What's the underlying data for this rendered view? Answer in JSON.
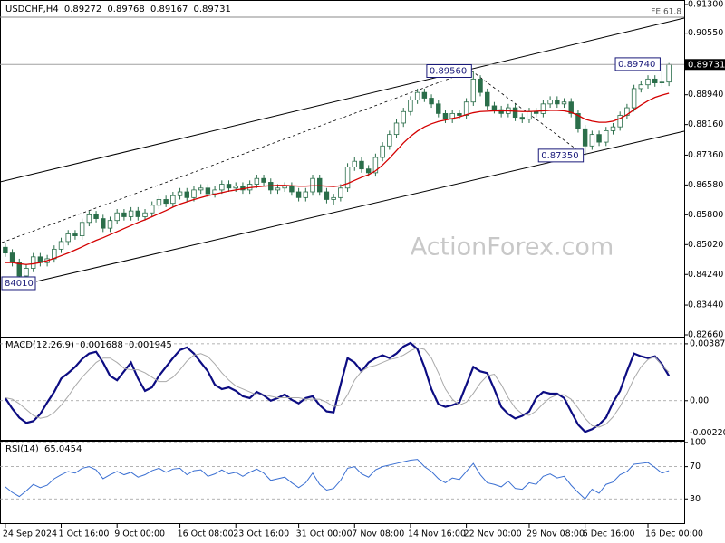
{
  "chart_data": [
    {
      "type": "candlestick",
      "title": "USDCHF,H4",
      "watermark": "ActionForex.com",
      "fe_label": "FE 61.8",
      "categories": [
        "24 Sep 2024",
        null,
        null,
        null,
        null,
        null,
        null,
        null,
        "1 Oct 16:00",
        null,
        null,
        null,
        null,
        null,
        null,
        null,
        "9 Oct 00:00",
        null,
        null,
        null,
        null,
        null,
        null,
        null,
        null,
        "16 Oct 08:00",
        null,
        null,
        null,
        null,
        null,
        null,
        null,
        "23 Oct 16:00",
        null,
        null,
        null,
        null,
        null,
        null,
        null,
        null,
        "31 Oct 00:00",
        null,
        null,
        null,
        null,
        null,
        null,
        null,
        "7 Nov 08:00",
        null,
        null,
        null,
        null,
        null,
        null,
        null,
        "14 Nov 16:00",
        null,
        null,
        null,
        null,
        null,
        null,
        null,
        "22 Nov 00:00",
        null,
        null,
        null,
        null,
        null,
        null,
        null,
        null,
        "29 Nov 08:00",
        null,
        null,
        null,
        null,
        null,
        null,
        null,
        "6 Dec 16:00",
        null,
        null,
        null,
        null,
        null,
        null,
        null,
        null,
        "16 Dec 00:00",
        null,
        null,
        null
      ],
      "open": [
        0.8495,
        0.848,
        0.8455,
        0.842,
        0.844,
        0.847,
        0.8455,
        0.8465,
        0.849,
        0.851,
        0.853,
        0.8525,
        0.856,
        0.858,
        0.857,
        0.8545,
        0.8565,
        0.8585,
        0.8575,
        0.859,
        0.8575,
        0.8585,
        0.8605,
        0.862,
        0.861,
        0.863,
        0.864,
        0.8625,
        0.8645,
        0.865,
        0.8635,
        0.8645,
        0.866,
        0.865,
        0.8655,
        0.8645,
        0.866,
        0.8675,
        0.8665,
        0.8645,
        0.865,
        0.8655,
        0.864,
        0.8625,
        0.864,
        0.8675,
        0.864,
        0.862,
        0.8625,
        0.865,
        0.8705,
        0.872,
        0.87,
        0.869,
        0.873,
        0.876,
        0.879,
        0.882,
        0.885,
        0.888,
        0.89,
        0.8885,
        0.887,
        0.8845,
        0.883,
        0.8845,
        0.884,
        0.8875,
        0.8935,
        0.89,
        0.8865,
        0.8855,
        0.8845,
        0.886,
        0.8835,
        0.883,
        0.885,
        0.8845,
        0.887,
        0.888,
        0.887,
        0.8875,
        0.8845,
        0.8805,
        0.876,
        0.879,
        0.877,
        0.88,
        0.881,
        0.884,
        0.886,
        0.891,
        0.892,
        0.8935,
        0.8925,
        0.89272
      ],
      "high": [
        0.8505,
        0.849,
        0.8465,
        0.845,
        0.848,
        0.848,
        0.8475,
        0.85,
        0.852,
        0.854,
        0.854,
        0.857,
        0.859,
        0.859,
        0.858,
        0.8575,
        0.8595,
        0.8595,
        0.86,
        0.86,
        0.8595,
        0.8615,
        0.863,
        0.863,
        0.864,
        0.865,
        0.865,
        0.8655,
        0.866,
        0.866,
        0.8655,
        0.867,
        0.867,
        0.8665,
        0.8665,
        0.867,
        0.8685,
        0.8685,
        0.8675,
        0.866,
        0.8665,
        0.8665,
        0.865,
        0.865,
        0.8685,
        0.8685,
        0.865,
        0.8635,
        0.866,
        0.8715,
        0.873,
        0.873,
        0.871,
        0.874,
        0.877,
        0.88,
        0.883,
        0.886,
        0.889,
        0.891,
        0.891,
        0.8895,
        0.888,
        0.8855,
        0.8855,
        0.8855,
        0.8885,
        0.8956,
        0.8945,
        0.891,
        0.8875,
        0.8865,
        0.887,
        0.887,
        0.8845,
        0.886,
        0.886,
        0.888,
        0.889,
        0.889,
        0.8885,
        0.8885,
        0.8855,
        0.8815,
        0.88,
        0.88,
        0.881,
        0.882,
        0.885,
        0.887,
        0.892,
        0.893,
        0.8945,
        0.8945,
        0.8974,
        0.89768
      ],
      "low": [
        0.847,
        0.8445,
        0.8401,
        0.841,
        0.843,
        0.8445,
        0.8445,
        0.8455,
        0.848,
        0.85,
        0.8515,
        0.8515,
        0.855,
        0.856,
        0.8535,
        0.8535,
        0.8555,
        0.8565,
        0.8565,
        0.8565,
        0.8565,
        0.8575,
        0.8595,
        0.86,
        0.86,
        0.862,
        0.8615,
        0.8615,
        0.8635,
        0.8625,
        0.8625,
        0.8635,
        0.864,
        0.864,
        0.8635,
        0.8635,
        0.865,
        0.8655,
        0.8635,
        0.8635,
        0.864,
        0.863,
        0.8615,
        0.8615,
        0.863,
        0.863,
        0.861,
        0.8607,
        0.8615,
        0.864,
        0.8695,
        0.869,
        0.868,
        0.868,
        0.872,
        0.875,
        0.878,
        0.881,
        0.884,
        0.887,
        0.8875,
        0.886,
        0.8835,
        0.882,
        0.882,
        0.883,
        0.883,
        0.8865,
        0.889,
        0.8855,
        0.8845,
        0.8835,
        0.8835,
        0.8825,
        0.882,
        0.882,
        0.8835,
        0.8835,
        0.886,
        0.886,
        0.886,
        0.8835,
        0.8795,
        0.8735,
        0.875,
        0.876,
        0.876,
        0.879,
        0.88,
        0.883,
        0.885,
        0.89,
        0.891,
        0.8915,
        0.8915,
        0.89167
      ],
      "close": [
        0.848,
        0.8455,
        0.842,
        0.844,
        0.847,
        0.8455,
        0.8465,
        0.849,
        0.851,
        0.853,
        0.8525,
        0.856,
        0.858,
        0.857,
        0.8545,
        0.8565,
        0.8585,
        0.8575,
        0.859,
        0.8575,
        0.8585,
        0.8605,
        0.862,
        0.861,
        0.863,
        0.864,
        0.8625,
        0.8645,
        0.865,
        0.8635,
        0.8645,
        0.866,
        0.865,
        0.8655,
        0.8645,
        0.866,
        0.8675,
        0.8665,
        0.8645,
        0.865,
        0.8655,
        0.864,
        0.8625,
        0.864,
        0.8675,
        0.864,
        0.862,
        0.8625,
        0.865,
        0.8705,
        0.872,
        0.87,
        0.869,
        0.873,
        0.876,
        0.879,
        0.882,
        0.885,
        0.888,
        0.89,
        0.8885,
        0.887,
        0.8845,
        0.883,
        0.8845,
        0.884,
        0.8875,
        0.8935,
        0.89,
        0.8865,
        0.8855,
        0.8845,
        0.886,
        0.8835,
        0.883,
        0.885,
        0.8845,
        0.887,
        0.888,
        0.887,
        0.8875,
        0.8845,
        0.8805,
        0.876,
        0.879,
        0.877,
        0.88,
        0.881,
        0.884,
        0.886,
        0.891,
        0.892,
        0.8935,
        0.8925,
        0.8927,
        0.89731
      ],
      "color": "#2b6e4a",
      "ma_color": "#d40000",
      "ma_values": [
        0.8455,
        0.8455,
        0.8452,
        0.845,
        0.8452,
        0.8455,
        0.846,
        0.8466,
        0.8473,
        0.848,
        0.8488,
        0.8496,
        0.8505,
        0.8513,
        0.852,
        0.8528,
        0.8536,
        0.8544,
        0.8552,
        0.856,
        0.8567,
        0.8575,
        0.8583,
        0.8591,
        0.86,
        0.8608,
        0.8614,
        0.862,
        0.8625,
        0.863,
        0.8634,
        0.8638,
        0.8642,
        0.8645,
        0.8648,
        0.8651,
        0.8653,
        0.8655,
        0.8656,
        0.8657,
        0.8657,
        0.8656,
        0.8655,
        0.8655,
        0.8656,
        0.8656,
        0.8655,
        0.8654,
        0.8656,
        0.8662,
        0.867,
        0.8678,
        0.8685,
        0.8695,
        0.871,
        0.8728,
        0.8748,
        0.8768,
        0.8785,
        0.8799,
        0.881,
        0.8818,
        0.8824,
        0.8828,
        0.8832,
        0.8836,
        0.8842,
        0.8847,
        0.885,
        0.8851,
        0.8852,
        0.8852,
        0.8852,
        0.8851,
        0.885,
        0.885,
        0.8851,
        0.8852,
        0.8853,
        0.8853,
        0.8852,
        0.8848,
        0.884,
        0.883,
        0.8825,
        0.8822,
        0.8822,
        0.8825,
        0.8832,
        0.8842,
        0.8855,
        0.8867,
        0.8878,
        0.8887,
        0.8893,
        0.8898
      ],
      "ylim": [
        0.82613,
        0.91418
      ],
      "yticks": [
        {
          "value": 0.913,
          "label": "0.91300"
        },
        {
          "value": 0.9055,
          "label": "0.90550"
        },
        {
          "value": 0.8894,
          "label": "0.88940"
        },
        {
          "value": 0.8816,
          "label": "0.88160"
        },
        {
          "value": 0.8736,
          "label": "0.87360"
        },
        {
          "value": 0.8658,
          "label": "0.86580"
        },
        {
          "value": 0.858,
          "label": "0.85800"
        },
        {
          "value": 0.8502,
          "label": "0.85020"
        },
        {
          "value": 0.8424,
          "label": "0.84240"
        },
        {
          "value": 0.8344,
          "label": "0.83440"
        },
        {
          "value": 0.8266,
          "label": "0.82660"
        }
      ],
      "current_price": {
        "value": 0.89731,
        "label": "0.89731"
      },
      "annotations": [
        {
          "value": 0.8956,
          "label": "0.89560"
        },
        {
          "value": 0.8735,
          "label": "0.87350"
        },
        {
          "value": 0.8974,
          "label": "0.89740"
        },
        {
          "value": 0.8401,
          "label": "84010"
        }
      ]
    },
    {
      "type": "line",
      "title": "MACD(12,26,9)",
      "series": [
        {
          "color": "#0c0c82",
          "width": 2.2,
          "values": [
            0.00018,
            -0.00054,
            -0.00115,
            -0.00151,
            -0.00139,
            -0.00091,
            -0.00012,
            0.0006,
            0.00151,
            0.00188,
            0.0023,
            0.00284,
            0.00321,
            0.00333,
            0.0026,
            0.00169,
            0.00139,
            0.002,
            0.0026,
            0.00151,
            0.00067,
            0.00091,
            0.00169,
            0.0023,
            0.0029,
            0.00345,
            0.00363,
            0.00321,
            0.0026,
            0.002,
            0.00109,
            0.00079,
            0.00091,
            0.00067,
            0.0003,
            0.00018,
            0.0006,
            0.00036,
            0,
            0.00018,
            0.00042,
            6e-05,
            -0.00018,
            0.00018,
            0.0003,
            -0.0003,
            -0.00073,
            -0.00079,
            0.00109,
            0.0029,
            0.0026,
            0.002,
            0.0026,
            0.0029,
            0.00309,
            0.0029,
            0.00321,
            0.00369,
            0.00393,
            0.00351,
            0.0023,
            0.00079,
            -0.00024,
            -0.00042,
            -0.0003,
            -0.00012,
            0.00109,
            0.0023,
            0.002,
            0.00188,
            0.00079,
            -0.00042,
            -0.00091,
            -0.00121,
            -0.00103,
            -0.00073,
            0.00018,
            0.0006,
            0.00048,
            0.00048,
            0.00018,
            -0.00073,
            -0.00163,
            -0.00212,
            -0.00194,
            -0.00163,
            -0.00115,
            -0.00012,
            0.00067,
            0.002,
            0.00321,
            0.00302,
            0.0029,
            0.00302,
            0.00248,
            0.001688
          ]
        },
        {
          "color": "#a9a9a9",
          "width": 1,
          "values": [
            0.0002,
            0.0001,
            -0.0002,
            -0.0006,
            -0.001,
            -0.0012,
            -0.0011,
            -0.0008,
            -0.0003,
            0.0003,
            0.001,
            0.0016,
            0.0021,
            0.0026,
            0.0029,
            0.0029,
            0.0026,
            0.0022,
            0.0021,
            0.0021,
            0.0019,
            0.0016,
            0.0013,
            0.0013,
            0.0016,
            0.0021,
            0.0027,
            0.0031,
            0.0032,
            0.003,
            0.0025,
            0.0019,
            0.0014,
            0.001,
            0.0008,
            0.0006,
            0.0004,
            0.0004,
            0.0003,
            0.0002,
            0.0002,
            0.0002,
            0.0002,
            0.0001,
            0.0001,
            0.0001,
            -0.0001,
            -0.0004,
            -0.0003,
            0.0004,
            0.0014,
            0.002,
            0.0023,
            0.0024,
            0.0026,
            0.0028,
            0.0029,
            0.0031,
            0.0034,
            0.0036,
            0.0035,
            0.0029,
            0.0019,
            0.0008,
            0.0001,
            -0.0003,
            -0.0001,
            0.0005,
            0.0012,
            0.0017,
            0.0018,
            0.0011,
            0.0002,
            -0.0005,
            -0.0009,
            -0.001,
            -0.0007,
            -0.0002,
            0.0002,
            0.0004,
            0.0004,
            0.0001,
            -0.0005,
            -0.0012,
            -0.0017,
            -0.0018,
            -0.0016,
            -0.0011,
            -0.0004,
            0.0005,
            0.0015,
            0.0023,
            0.0028,
            0.003,
            0.0024,
            0.001945
          ]
        }
      ],
      "ylim": [
        -0.002662,
        0.004236
      ],
      "yticks": [
        0.003873,
        {
          "value": 0,
          "label": "0.00"
        },
        -0.002201
      ],
      "grid": true
    },
    {
      "type": "line",
      "title": "RSI(14)",
      "series": [
        {
          "color": "#3a6fd2",
          "width": 1,
          "values": [
            45,
            38,
            33,
            40,
            48,
            44,
            47,
            55,
            60,
            64,
            62,
            68,
            70,
            66,
            55,
            60,
            64,
            60,
            63,
            57,
            60,
            65,
            68,
            63,
            67,
            68,
            60,
            65,
            66,
            58,
            61,
            66,
            61,
            63,
            58,
            63,
            67,
            62,
            53,
            55,
            57,
            50,
            44,
            50,
            62,
            48,
            41,
            43,
            53,
            68,
            70,
            61,
            57,
            66,
            70,
            72,
            74,
            76,
            78,
            79,
            70,
            64,
            55,
            50,
            56,
            54,
            64,
            74,
            60,
            50,
            48,
            45,
            52,
            43,
            42,
            50,
            48,
            58,
            61,
            56,
            58,
            47,
            38,
            30,
            42,
            37,
            48,
            51,
            60,
            64,
            73,
            74,
            75,
            69,
            62,
            65.0454
          ]
        }
      ],
      "ylim": [
        0,
        101
      ],
      "yticks": [
        100,
        70,
        30
      ],
      "grid": true
    }
  ]
}
